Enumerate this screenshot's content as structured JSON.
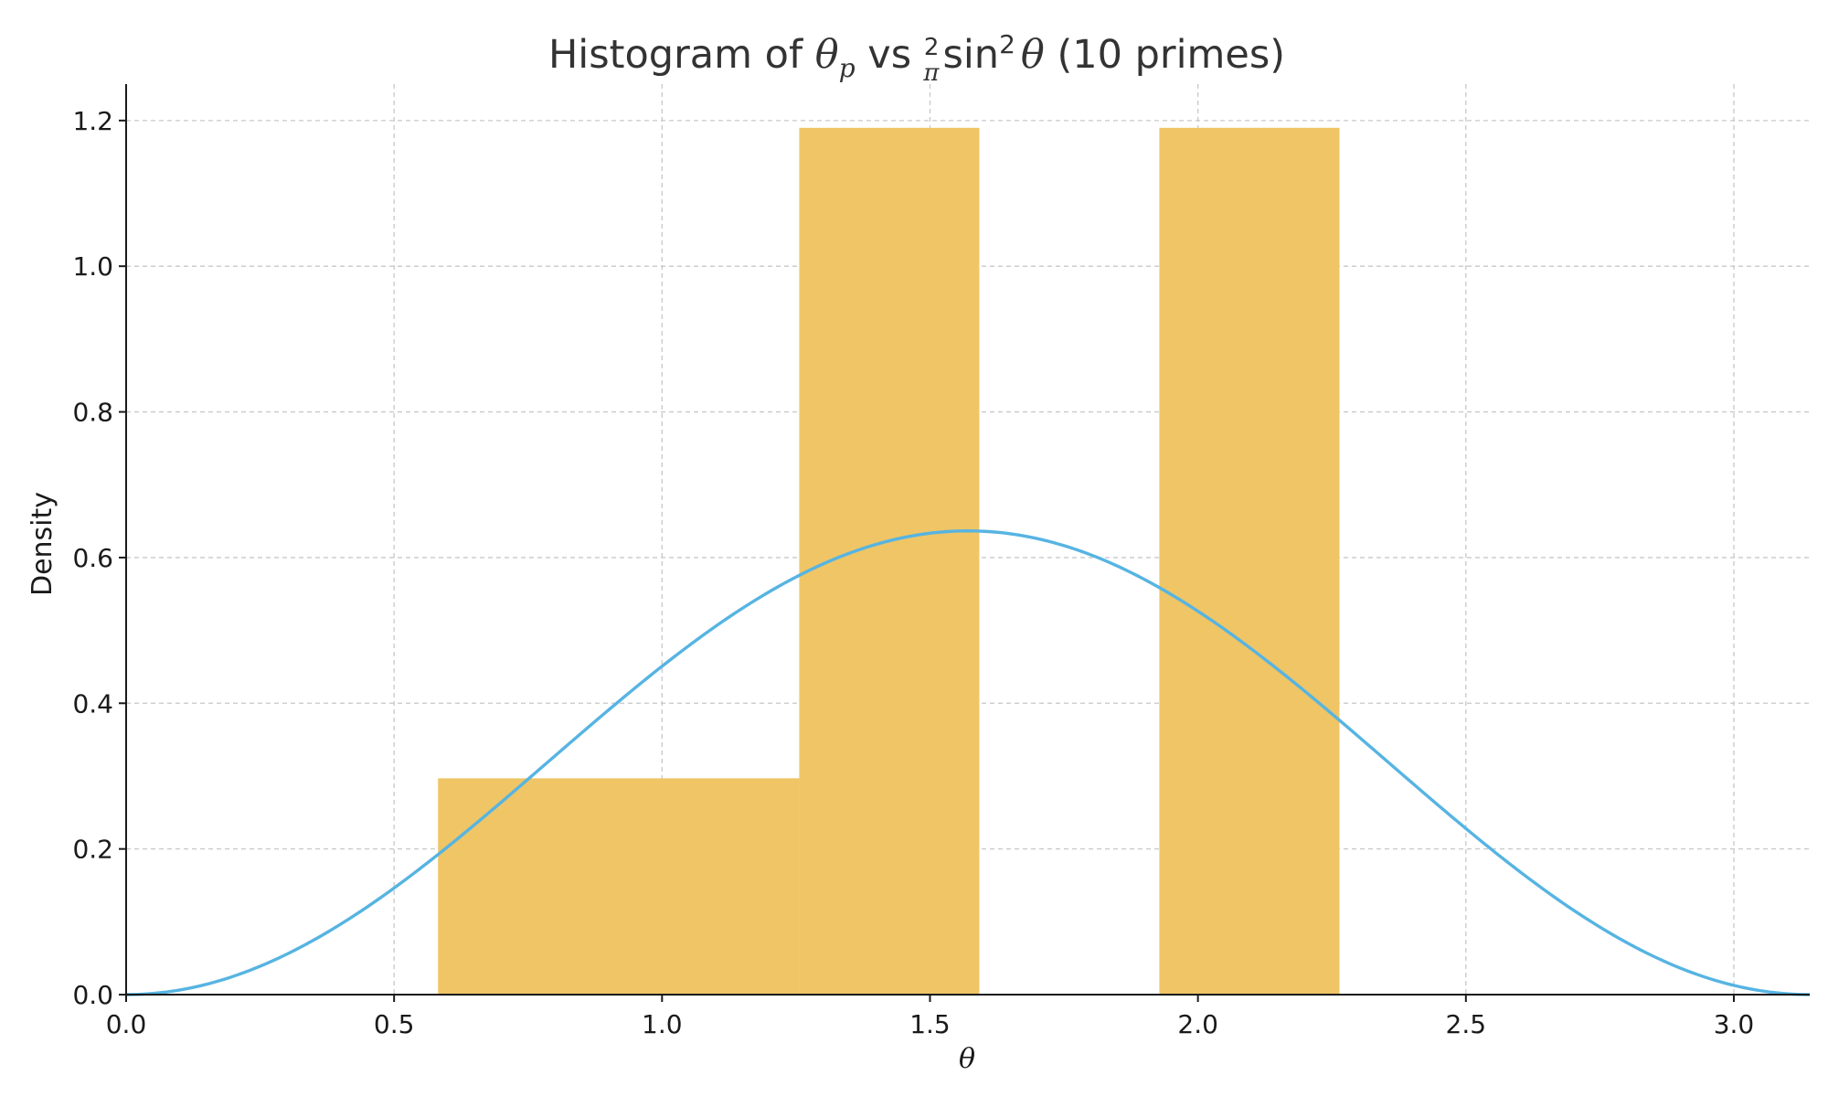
{
  "chart_data": {
    "type": "bar",
    "title": {
      "part1": "Histogram of ",
      "theta": "θ",
      "sub_p": "p",
      "vs": " vs ",
      "frac_num": "2",
      "frac_den": "π",
      "sin": "sin",
      "sup_2": "2",
      "theta2": "θ",
      "tail": " (10 primes)"
    },
    "xlabel": "θ",
    "ylabel": "Density",
    "xlim": [
      0,
      3.14159
    ],
    "ylim": [
      0,
      1.25
    ],
    "xticks": [
      0.0,
      0.5,
      1.0,
      1.5,
      2.0,
      2.5,
      3.0
    ],
    "xtick_labels": [
      "0.0",
      "0.5",
      "1.0",
      "1.5",
      "2.0",
      "2.5",
      "3.0"
    ],
    "yticks": [
      0.0,
      0.2,
      0.4,
      0.6,
      0.8,
      1.0,
      1.2
    ],
    "ytick_labels": [
      "0.0",
      "0.2",
      "0.4",
      "0.6",
      "0.8",
      "1.0",
      "1.2"
    ],
    "grid": true,
    "histogram": {
      "bins": [
        {
          "x0": 0.582,
          "x1": 1.256,
          "density": 0.297
        },
        {
          "x0": 1.256,
          "x1": 1.592,
          "density": 1.19
        },
        {
          "x0": 1.592,
          "x1": 1.928,
          "density": 0.0
        },
        {
          "x0": 1.928,
          "x1": 2.264,
          "density": 1.19
        }
      ],
      "color": "#efc566"
    },
    "curve": {
      "formula": "(2/π)·sin²θ",
      "x_range": [
        0,
        3.14159
      ],
      "color": "#56b4e2"
    }
  }
}
